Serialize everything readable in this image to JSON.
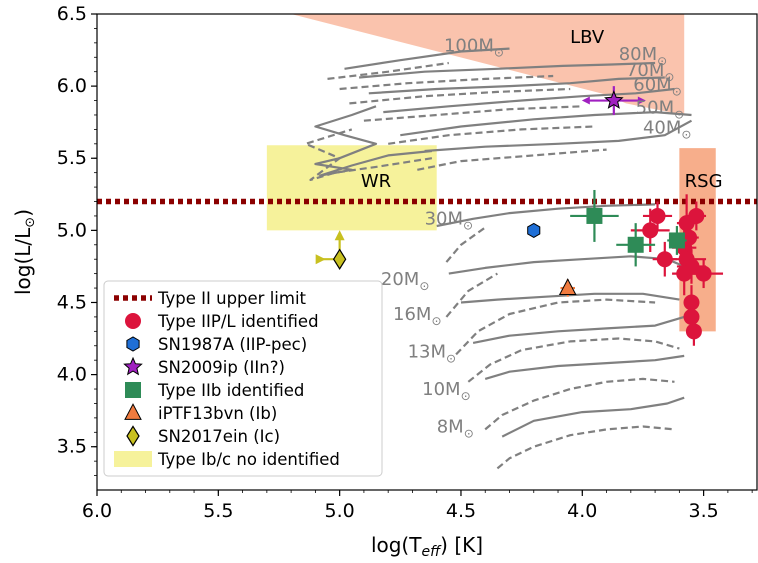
{
  "chart_data": {
    "type": "scatter",
    "title": "",
    "xlabel": "log(T",
    "xlabel_sub": "eff",
    "xlabel_suffix": ") [K]",
    "ylabel": "log(L/L",
    "ylabel_sym": "⊙",
    "ylabel_suffix": ")",
    "xlim": [
      6.0,
      3.28
    ],
    "ylim": [
      3.2,
      6.5
    ],
    "x_inverted": true,
    "x_ticks": [
      6.0,
      5.5,
      5.0,
      4.5,
      4.0,
      3.5
    ],
    "x_tick_labels": [
      "6.0",
      "5.5",
      "5.0",
      "4.5",
      "4.0",
      "3.5"
    ],
    "y_ticks": [
      3.5,
      4.0,
      4.5,
      5.0,
      5.5,
      6.0,
      6.5
    ],
    "y_tick_labels": [
      "3.5",
      "4.0",
      "4.5",
      "5.0",
      "5.5",
      "6.0",
      "6.5"
    ],
    "grid": false,
    "legend_position": "lower-left",
    "colors": {
      "type_ii_limit": "#8b0000",
      "iip": "#dc143c",
      "sn1987a": "#1f6fd6",
      "sn2009ip": "#a020c0",
      "iib": "#2e8b57",
      "iptf13bvn": "#f07b3f",
      "sn2017ein": "#c8c020",
      "wr_region": "#f5f08a",
      "lbv_region": "#f8a98a",
      "rsg_region": "#f59a6e",
      "tracks": "#808080"
    },
    "regions": [
      {
        "name": "LBV",
        "polygon": [
          [
            5.2,
            6.5
          ],
          [
            3.58,
            6.5
          ],
          [
            3.58,
            5.8
          ],
          [
            3.82,
            5.88
          ],
          [
            3.9,
            5.94
          ]
        ]
      },
      {
        "name": "WR",
        "polygon": [
          [
            5.3,
            5.0
          ],
          [
            4.6,
            5.0
          ],
          [
            4.6,
            5.59
          ],
          [
            5.3,
            5.59
          ]
        ]
      },
      {
        "name": "RSG",
        "polygon": [
          [
            3.6,
            4.3
          ],
          [
            3.45,
            4.3
          ],
          [
            3.45,
            5.57
          ],
          [
            3.6,
            5.57
          ]
        ]
      }
    ],
    "type_ii_upper_limit": 5.2,
    "mass_labels": [
      {
        "text": "100M",
        "x": 4.57,
        "y": 6.24
      },
      {
        "text": "80M",
        "x": 3.85,
        "y": 6.18
      },
      {
        "text": "70M",
        "x": 3.82,
        "y": 6.07
      },
      {
        "text": "60M",
        "x": 3.79,
        "y": 5.97
      },
      {
        "text": "50M",
        "x": 3.78,
        "y": 5.81
      },
      {
        "text": "40M",
        "x": 3.75,
        "y": 5.67
      },
      {
        "text": "30M",
        "x": 4.65,
        "y": 5.04
      },
      {
        "text": "20M",
        "x": 4.83,
        "y": 4.62
      },
      {
        "text": "16M",
        "x": 4.78,
        "y": 4.38
      },
      {
        "text": "13M",
        "x": 4.72,
        "y": 4.12
      },
      {
        "text": "10M",
        "x": 4.66,
        "y": 3.86
      },
      {
        "text": "8M",
        "x": 4.6,
        "y": 3.6
      }
    ],
    "mass_symbol": "⊙",
    "tracks": [
      {
        "mass": "8M",
        "solid": [
          [
            4.33,
            3.57
          ],
          [
            4.2,
            3.68
          ],
          [
            4.0,
            3.74
          ],
          [
            3.8,
            3.76
          ],
          [
            3.65,
            3.8
          ],
          [
            3.58,
            3.84
          ]
        ],
        "dashed": [
          [
            4.35,
            3.35
          ],
          [
            4.3,
            3.42
          ],
          [
            4.2,
            3.5
          ],
          [
            4.05,
            3.58
          ],
          [
            3.9,
            3.62
          ],
          [
            3.75,
            3.64
          ],
          [
            3.62,
            3.62
          ]
        ]
      },
      {
        "mass": "10M",
        "solid": [
          [
            4.4,
            3.97
          ],
          [
            4.3,
            4.02
          ],
          [
            4.1,
            4.06
          ],
          [
            3.9,
            4.08
          ],
          [
            3.7,
            4.1
          ],
          [
            3.58,
            4.13
          ]
        ],
        "dashed": [
          [
            4.4,
            3.62
          ],
          [
            4.33,
            3.72
          ],
          [
            4.2,
            3.82
          ],
          [
            4.05,
            3.9
          ],
          [
            3.9,
            3.95
          ],
          [
            3.75,
            3.97
          ],
          [
            3.62,
            3.95
          ]
        ]
      },
      {
        "mass": "13M",
        "solid": [
          [
            4.45,
            4.22
          ],
          [
            4.3,
            4.27
          ],
          [
            4.1,
            4.3
          ],
          [
            3.9,
            4.32
          ],
          [
            3.7,
            4.34
          ],
          [
            3.58,
            4.4
          ]
        ],
        "dashed": [
          [
            4.47,
            3.95
          ],
          [
            4.38,
            4.07
          ],
          [
            4.25,
            4.17
          ],
          [
            4.05,
            4.23
          ],
          [
            3.85,
            4.25
          ],
          [
            3.7,
            4.23
          ],
          [
            3.6,
            4.18
          ]
        ]
      },
      {
        "mass": "16M",
        "solid": [
          [
            4.5,
            4.5
          ],
          [
            4.35,
            4.52
          ],
          [
            4.15,
            4.54
          ],
          [
            3.95,
            4.56
          ],
          [
            3.75,
            4.56
          ],
          [
            3.6,
            4.52
          ]
        ],
        "dashed": [
          [
            4.52,
            4.14
          ],
          [
            4.43,
            4.3
          ],
          [
            4.3,
            4.42
          ],
          [
            4.1,
            4.5
          ],
          [
            3.9,
            4.52
          ],
          [
            3.7,
            4.5
          ]
        ]
      },
      {
        "mass": "20M",
        "solid": [
          [
            4.55,
            4.7
          ],
          [
            4.4,
            4.74
          ],
          [
            4.2,
            4.78
          ],
          [
            4.0,
            4.8
          ],
          [
            3.8,
            4.82
          ],
          [
            3.65,
            4.8
          ],
          [
            3.58,
            4.75
          ]
        ],
        "dashed": [
          [
            4.56,
            4.4
          ],
          [
            4.47,
            4.58
          ],
          [
            4.35,
            4.7
          ]
        ]
      },
      {
        "mass": "30M",
        "solid": [
          [
            4.6,
            5.03
          ],
          [
            4.45,
            5.08
          ],
          [
            4.3,
            5.12
          ],
          [
            4.1,
            5.15
          ],
          [
            3.9,
            5.17
          ],
          [
            3.7,
            5.18
          ]
        ],
        "dashed": [
          [
            4.56,
            4.78
          ],
          [
            4.5,
            4.9
          ],
          [
            4.4,
            5.02
          ]
        ]
      },
      {
        "mass": "40M",
        "solid": [
          [
            4.65,
            5.55
          ],
          [
            4.4,
            5.58
          ],
          [
            4.1,
            5.6
          ],
          [
            3.85,
            5.62
          ],
          [
            3.66,
            5.66
          ],
          [
            3.55,
            5.76
          ]
        ],
        "dashed": [
          [
            4.68,
            5.42
          ],
          [
            4.5,
            5.48
          ],
          [
            4.2,
            5.52
          ],
          [
            3.9,
            5.56
          ]
        ]
      },
      {
        "mass": "50M",
        "solid": [
          [
            4.75,
            5.66
          ],
          [
            4.5,
            5.72
          ],
          [
            4.2,
            5.77
          ],
          [
            3.95,
            5.8
          ],
          [
            3.7,
            5.82
          ],
          [
            3.55,
            5.8
          ]
        ],
        "dashed": [
          [
            4.8,
            5.6
          ],
          [
            4.55,
            5.66
          ],
          [
            4.25,
            5.7
          ],
          [
            3.95,
            5.72
          ]
        ]
      },
      {
        "mass": "60M",
        "solid": [
          [
            4.82,
            5.82
          ],
          [
            4.55,
            5.86
          ],
          [
            4.25,
            5.9
          ],
          [
            4.0,
            5.93
          ],
          [
            3.78,
            5.95
          ],
          [
            3.62,
            5.98
          ]
        ],
        "dashed": [
          [
            4.9,
            5.76
          ],
          [
            4.6,
            5.8
          ],
          [
            4.3,
            5.84
          ],
          [
            4.0,
            5.86
          ]
        ]
      },
      {
        "mass": "70M",
        "solid": [
          [
            4.88,
            5.95
          ],
          [
            4.6,
            5.98
          ],
          [
            4.3,
            6.0
          ],
          [
            4.05,
            6.02
          ],
          [
            3.85,
            6.05
          ],
          [
            3.66,
            6.06
          ]
        ],
        "dashed": [
          [
            4.96,
            5.88
          ],
          [
            4.65,
            5.93
          ],
          [
            4.35,
            5.96
          ],
          [
            4.05,
            5.98
          ]
        ]
      },
      {
        "mass": "80M",
        "solid": [
          [
            4.92,
            6.06
          ],
          [
            4.65,
            6.1
          ],
          [
            4.35,
            6.12
          ],
          [
            4.08,
            6.14
          ],
          [
            3.88,
            6.15
          ],
          [
            3.7,
            6.16
          ]
        ],
        "dashed": [
          [
            5.0,
            5.98
          ],
          [
            4.72,
            6.02
          ],
          [
            4.4,
            6.05
          ],
          [
            4.12,
            6.07
          ]
        ]
      },
      {
        "mass": "100M",
        "solid": [
          [
            4.98,
            6.12
          ],
          [
            4.75,
            6.18
          ],
          [
            4.5,
            6.24
          ],
          [
            4.3,
            6.26
          ]
        ],
        "dashed": [
          [
            5.05,
            6.05
          ],
          [
            4.8,
            6.1
          ],
          [
            4.55,
            6.16
          ]
        ]
      },
      {
        "mass": "WR-loops",
        "solid": [
          [
            4.62,
            5.55
          ],
          [
            4.8,
            5.52
          ],
          [
            4.95,
            5.45
          ],
          [
            5.08,
            5.38
          ],
          [
            4.95,
            5.42
          ],
          [
            5.1,
            5.46
          ],
          [
            5.0,
            5.5
          ],
          [
            4.85,
            5.6
          ],
          [
            4.98,
            5.66
          ],
          [
            5.1,
            5.72
          ],
          [
            4.95,
            5.8
          ],
          [
            4.85,
            5.86
          ]
        ],
        "dashed": [
          [
            4.62,
            5.5
          ],
          [
            4.85,
            5.44
          ],
          [
            5.02,
            5.4
          ],
          [
            5.12,
            5.35
          ],
          [
            5.0,
            5.5
          ],
          [
            5.14,
            5.6
          ],
          [
            4.95,
            5.7
          ]
        ]
      }
    ],
    "series": [
      {
        "name": "Type II upper limit",
        "kind": "line",
        "y": 5.2
      },
      {
        "name": "Type IIP/L identified",
        "kind": "point",
        "marker": "circle",
        "points": [
          {
            "x": 3.72,
            "y": 5.0,
            "xerr": 0.08,
            "yerr": 0.15
          },
          {
            "x": 3.69,
            "y": 5.1,
            "xerr": 0.06,
            "yerr": 0.1
          },
          {
            "x": 3.66,
            "y": 4.8,
            "xerr": 0.05,
            "yerr": 0.12
          },
          {
            "x": 3.57,
            "y": 5.05,
            "xerr": 0.04,
            "yerr": 0.2
          },
          {
            "x": 3.56,
            "y": 4.95,
            "xerr": 0.04,
            "yerr": 0.12
          },
          {
            "x": 3.58,
            "y": 4.88,
            "xerr": 0.05,
            "yerr": 0.15
          },
          {
            "x": 3.57,
            "y": 4.8,
            "xerr": 0.08,
            "yerr": 0.1
          },
          {
            "x": 3.55,
            "y": 4.75,
            "xerr": 0.06,
            "yerr": 0.12
          },
          {
            "x": 3.58,
            "y": 4.7,
            "xerr": 0.05,
            "yerr": 0.15
          },
          {
            "x": 3.5,
            "y": 4.7,
            "xerr": 0.08,
            "yerr": 0.1
          },
          {
            "x": 3.55,
            "y": 4.5,
            "xerr": 0.03,
            "yerr": 0.12
          },
          {
            "x": 3.55,
            "y": 4.4,
            "xerr": 0.03,
            "yerr": 0.1
          },
          {
            "x": 3.54,
            "y": 4.3,
            "xerr": 0.03,
            "yerr": 0.1
          },
          {
            "x": 3.53,
            "y": 5.1,
            "xerr": 0.04,
            "yerr": 0.1
          }
        ]
      },
      {
        "name": "SN1987A (IIP-pec)",
        "kind": "point",
        "marker": "hexagon",
        "points": [
          {
            "x": 4.2,
            "y": 5.0
          }
        ]
      },
      {
        "name": "SN2009ip (IIn?)",
        "kind": "point",
        "marker": "star",
        "points": [
          {
            "x": 3.87,
            "y": 5.9,
            "xerr": 0.1,
            "yerr": 0.1
          }
        ]
      },
      {
        "name": "Type IIb identified",
        "kind": "point",
        "marker": "square",
        "points": [
          {
            "x": 3.95,
            "y": 5.1,
            "xerr": 0.1,
            "yerr": 0.18
          },
          {
            "x": 3.78,
            "y": 4.9,
            "xerr": 0.08,
            "yerr": 0.15
          },
          {
            "x": 3.61,
            "y": 4.93,
            "xerr": 0.04,
            "yerr": 0.1
          }
        ]
      },
      {
        "name": "iPTF13bvn (Ib)",
        "kind": "point",
        "marker": "triangle",
        "points": [
          {
            "x": 4.06,
            "y": 4.6,
            "xerr": 0.03,
            "yerr": 0.06
          }
        ]
      },
      {
        "name": "SN2017ein (Ic)",
        "kind": "point",
        "marker": "diamond",
        "points": [
          {
            "x": 5.0,
            "y": 4.8,
            "xerr_right": 0.07,
            "yerr_up": 0.18
          }
        ]
      },
      {
        "name": "Type Ib/c no identified",
        "kind": "region"
      }
    ]
  }
}
